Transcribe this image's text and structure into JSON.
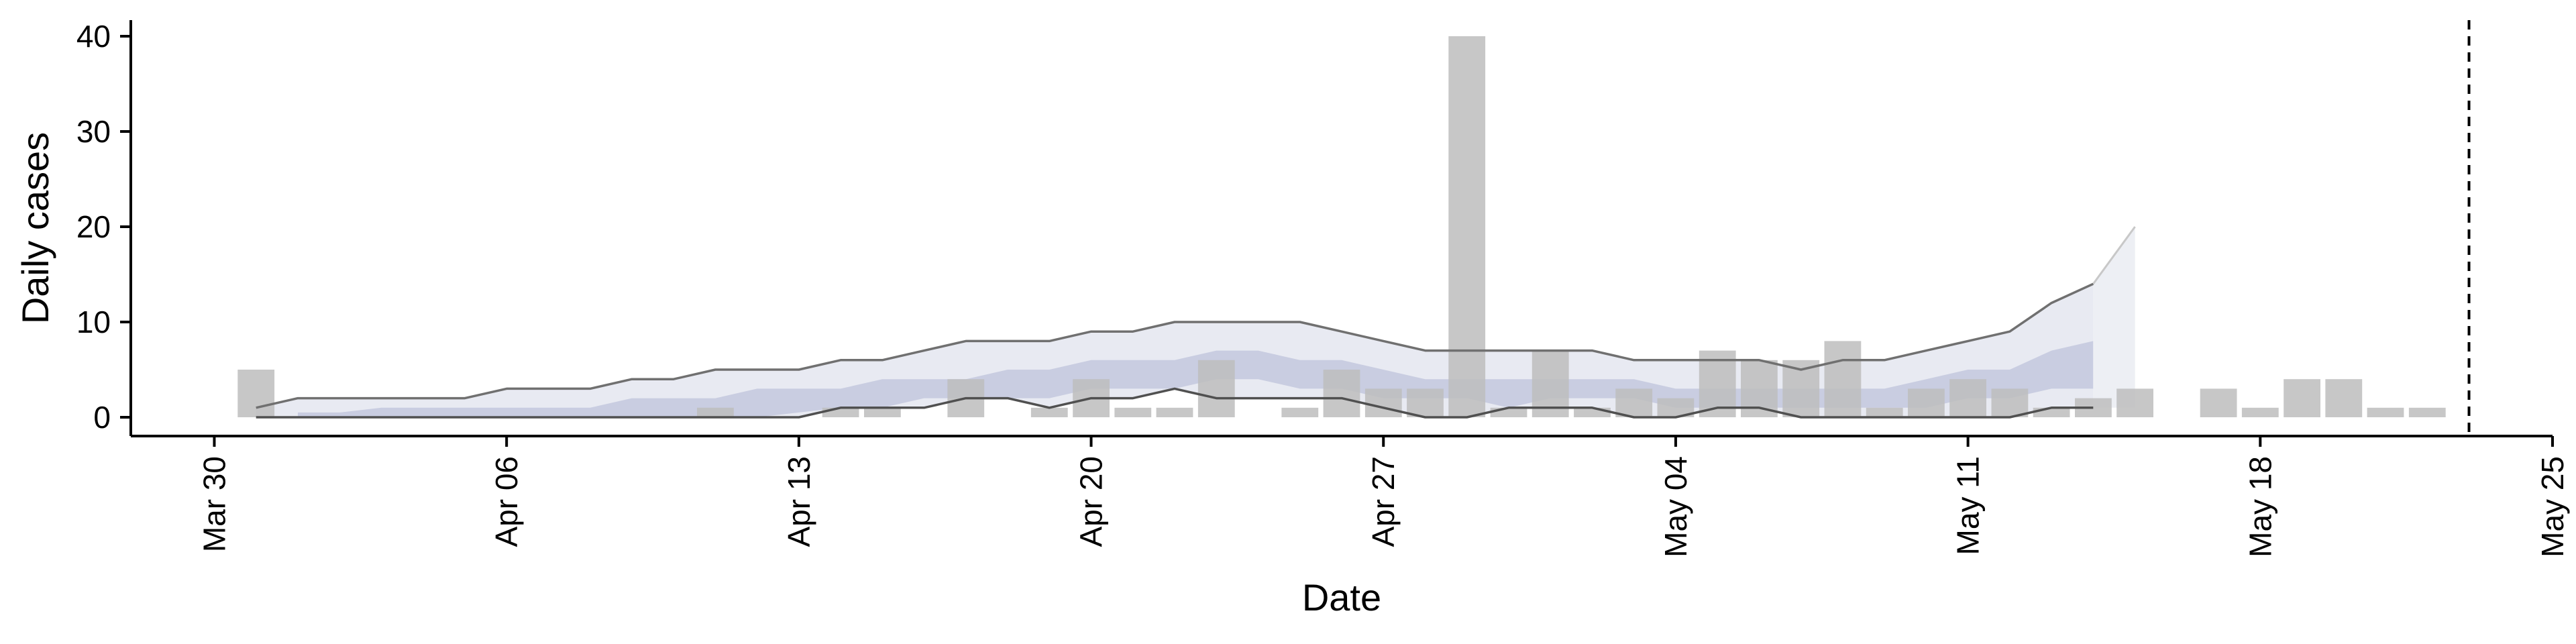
{
  "chart_data": {
    "type": "bar",
    "xlabel": "Date",
    "ylabel": "Daily cases",
    "ylim": [
      0,
      42
    ],
    "y_ticks": [
      0,
      10,
      20,
      30,
      40
    ],
    "x_ticks": [
      {
        "date": "2020-03-30",
        "label": "Mar 30"
      },
      {
        "date": "2020-04-06",
        "label": "Apr 06"
      },
      {
        "date": "2020-04-13",
        "label": "Apr 13"
      },
      {
        "date": "2020-04-20",
        "label": "Apr 20"
      },
      {
        "date": "2020-04-27",
        "label": "Apr 27"
      },
      {
        "date": "2020-05-04",
        "label": "May 04"
      },
      {
        "date": "2020-05-11",
        "label": "May 11"
      },
      {
        "date": "2020-05-18",
        "label": "May 18"
      },
      {
        "date": "2020-05-25",
        "label": "May 25"
      }
    ],
    "xlim": [
      "2020-03-28",
      "2020-05-25"
    ],
    "grid": false,
    "bars": {
      "color": "#bdbdbd",
      "points": [
        {
          "date": "2020-03-31",
          "value": 5
        },
        {
          "date": "2020-04-11",
          "value": 1
        },
        {
          "date": "2020-04-14",
          "value": 1
        },
        {
          "date": "2020-04-15",
          "value": 1
        },
        {
          "date": "2020-04-17",
          "value": 4
        },
        {
          "date": "2020-04-19",
          "value": 1
        },
        {
          "date": "2020-04-20",
          "value": 4
        },
        {
          "date": "2020-04-21",
          "value": 1
        },
        {
          "date": "2020-04-22",
          "value": 1
        },
        {
          "date": "2020-04-23",
          "value": 6
        },
        {
          "date": "2020-04-25",
          "value": 1
        },
        {
          "date": "2020-04-26",
          "value": 5
        },
        {
          "date": "2020-04-27",
          "value": 3
        },
        {
          "date": "2020-04-28",
          "value": 3
        },
        {
          "date": "2020-04-29",
          "value": 40
        },
        {
          "date": "2020-04-30",
          "value": 1
        },
        {
          "date": "2020-05-01",
          "value": 7
        },
        {
          "date": "2020-05-02",
          "value": 1
        },
        {
          "date": "2020-05-03",
          "value": 3
        },
        {
          "date": "2020-05-04",
          "value": 2
        },
        {
          "date": "2020-05-05",
          "value": 7
        },
        {
          "date": "2020-05-06",
          "value": 6
        },
        {
          "date": "2020-05-07",
          "value": 6
        },
        {
          "date": "2020-05-08",
          "value": 8
        },
        {
          "date": "2020-05-09",
          "value": 1
        },
        {
          "date": "2020-05-10",
          "value": 3
        },
        {
          "date": "2020-05-11",
          "value": 4
        },
        {
          "date": "2020-05-12",
          "value": 3
        },
        {
          "date": "2020-05-13",
          "value": 1
        },
        {
          "date": "2020-05-14",
          "value": 2
        },
        {
          "date": "2020-05-15",
          "value": 3
        },
        {
          "date": "2020-05-17",
          "value": 3
        },
        {
          "date": "2020-05-18",
          "value": 1
        },
        {
          "date": "2020-05-19",
          "value": 4
        },
        {
          "date": "2020-05-20",
          "value": 4
        },
        {
          "date": "2020-05-21",
          "value": 1
        },
        {
          "date": "2020-05-22",
          "value": 1
        }
      ]
    },
    "bands": [
      {
        "level": "outer",
        "color": "#c5cadf",
        "dates": [
          "2020-03-31",
          "2020-04-01",
          "2020-04-02",
          "2020-04-03",
          "2020-04-04",
          "2020-04-05",
          "2020-04-06",
          "2020-04-07",
          "2020-04-08",
          "2020-04-09",
          "2020-04-10",
          "2020-04-11",
          "2020-04-12",
          "2020-04-13",
          "2020-04-14",
          "2020-04-15",
          "2020-04-16",
          "2020-04-17",
          "2020-04-18",
          "2020-04-19",
          "2020-04-20",
          "2020-04-21",
          "2020-04-22",
          "2020-04-23",
          "2020-04-24",
          "2020-04-25",
          "2020-04-26",
          "2020-04-27",
          "2020-04-28",
          "2020-04-29",
          "2020-04-30",
          "2020-05-01",
          "2020-05-02",
          "2020-05-03",
          "2020-05-04",
          "2020-05-05",
          "2020-05-06",
          "2020-05-07",
          "2020-05-08",
          "2020-05-09",
          "2020-05-10",
          "2020-05-11",
          "2020-05-12",
          "2020-05-13",
          "2020-05-14"
        ],
        "upper": [
          1,
          2,
          2,
          2,
          2,
          2,
          3,
          3,
          3,
          4,
          4,
          5,
          5,
          5,
          6,
          6,
          7,
          8,
          8,
          8,
          9,
          9,
          10,
          10,
          10,
          10,
          9,
          8,
          7,
          7,
          7,
          7,
          7,
          6,
          6,
          6,
          6,
          5,
          6,
          6,
          7,
          8,
          9,
          12,
          14
        ],
        "lower": [
          0,
          0,
          0,
          0,
          0,
          0,
          0,
          0,
          0,
          0,
          0,
          0,
          0,
          0,
          1,
          1,
          1,
          2,
          2,
          1,
          2,
          2,
          3,
          2,
          2,
          2,
          2,
          1,
          0,
          0,
          1,
          1,
          1,
          0,
          0,
          1,
          1,
          0,
          0,
          0,
          0,
          0,
          0,
          1,
          1
        ]
      },
      {
        "level": "inner",
        "color": "#a3abcb",
        "dates": [
          "2020-04-01",
          "2020-04-02",
          "2020-04-03",
          "2020-04-04",
          "2020-04-05",
          "2020-04-06",
          "2020-04-07",
          "2020-04-08",
          "2020-04-09",
          "2020-04-10",
          "2020-04-11",
          "2020-04-12",
          "2020-04-13",
          "2020-04-14",
          "2020-04-15",
          "2020-04-16",
          "2020-04-17",
          "2020-04-18",
          "2020-04-19",
          "2020-04-20",
          "2020-04-21",
          "2020-04-22",
          "2020-04-23",
          "2020-04-24",
          "2020-04-25",
          "2020-04-26",
          "2020-04-27",
          "2020-04-28",
          "2020-04-29",
          "2020-04-30",
          "2020-05-01",
          "2020-05-02",
          "2020-05-03",
          "2020-05-04",
          "2020-05-05",
          "2020-05-06",
          "2020-05-07",
          "2020-05-08",
          "2020-05-09",
          "2020-05-10",
          "2020-05-11",
          "2020-05-12",
          "2020-05-13",
          "2020-05-14"
        ],
        "upper": [
          0.5,
          0.5,
          1,
          1,
          1,
          1,
          1,
          1,
          2,
          2,
          2,
          3,
          3,
          3,
          4,
          4,
          4,
          5,
          5,
          6,
          6,
          6,
          7,
          7,
          6,
          6,
          5,
          4,
          4,
          4,
          4,
          4,
          4,
          3,
          3,
          3,
          3,
          3,
          3,
          4,
          5,
          5,
          7,
          8
        ],
        "lower": [
          0,
          0,
          0,
          0,
          0,
          0,
          0,
          0,
          0,
          0,
          0,
          0,
          0.5,
          1,
          1,
          2,
          2,
          2,
          2,
          3,
          3,
          3,
          4,
          4,
          3,
          3,
          2,
          2,
          2,
          1,
          2,
          2,
          2,
          1,
          1,
          1,
          1,
          1,
          1,
          1,
          2,
          2,
          3,
          3
        ]
      }
    ],
    "forecast_fan": {
      "color": "#e6e8f0",
      "dates": [
        "2020-05-14",
        "2020-05-15"
      ],
      "upper": [
        14,
        20
      ],
      "lower": [
        1,
        1
      ]
    },
    "lines": [
      {
        "role": "upper",
        "color": "#707070",
        "from_band": "outer"
      },
      {
        "role": "lower",
        "color": "#505050",
        "from_band": "outer"
      }
    ],
    "vline": {
      "date": "2020-05-23",
      "style": "dashed",
      "color": "#000000"
    }
  }
}
